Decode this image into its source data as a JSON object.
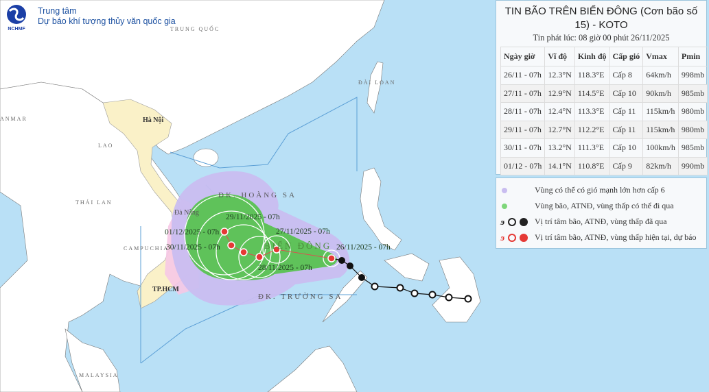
{
  "header": {
    "logo_text": "NCHMF",
    "org_line1": "Trung tâm",
    "org_line2": "Dự báo khí tượng thủy văn quốc gia"
  },
  "info": {
    "title": "TIN BÃO TRÊN BIỂN ĐÔNG (Cơn bão số 15) - KOTO",
    "issued": "Tin phát lúc: 08 giờ 00 phút 26/11/2025",
    "columns": [
      "Ngày giờ",
      "Vĩ độ",
      "Kinh độ",
      "Cấp gió",
      "Vmax",
      "Pmin"
    ],
    "rows": [
      [
        "26/11 - 07h",
        "12.3°N",
        "118.3°E",
        "Cấp 8",
        "64km/h",
        "998mb"
      ],
      [
        "27/11 - 07h",
        "12.9°N",
        "114.5°E",
        "Cấp 10",
        "90km/h",
        "985mb"
      ],
      [
        "28/11 - 07h",
        "12.4°N",
        "113.3°E",
        "Cấp 11",
        "115km/h",
        "980mb"
      ],
      [
        "29/11 - 07h",
        "12.7°N",
        "112.2°E",
        "Cấp 11",
        "115km/h",
        "980mb"
      ],
      [
        "30/11 - 07h",
        "13.2°N",
        "111.3°E",
        "Cấp 10",
        "100km/h",
        "985mb"
      ],
      [
        "01/12 - 07h",
        "14.1°N",
        "110.8°E",
        "Cấp 9",
        "82km/h",
        "990mb"
      ]
    ]
  },
  "legend": {
    "items": [
      {
        "label": "Vùng có thể có gió mạnh lớn hơn cấp 6",
        "color": "#c9bdf0"
      },
      {
        "label": "Vùng bão, ATNĐ, vùng thấp có thể đi qua",
        "color": "#7ed67a"
      },
      {
        "label": "Vị trí tâm bão, ATNĐ, vùng thấp đã qua",
        "color": "#222222"
      },
      {
        "label": "Vị trí tâm bão, ATNĐ, vùng thấp hiện tại, dự báo",
        "color": "#e53935"
      }
    ]
  },
  "map": {
    "labels": {
      "china": "TRUNG QUỐC",
      "myanmar": "ANMAR",
      "laos": "LAO",
      "thailand": "THÁI LAN",
      "cambodia": "CAMPUCHIA",
      "taiwan": "ĐÀI LOAN",
      "malaysia": "MALAYSIA",
      "hanoi": "Hà Nội",
      "danang": "Đà Nẵng",
      "hcm": "TP.HCM",
      "hoangsa": "ĐK. HOÀNG SA",
      "truongsa": "ĐK. TRƯỜNG SA",
      "biendong": "BIỂN ĐÔNG"
    },
    "forecast_labels": [
      "26/11/2025 - 07h",
      "27/11/2025 - 07h",
      "28/11/2025 - 07h",
      "29/11/2025 - 07h",
      "30/11/2025 - 07h",
      "01/12/2025 - 07h"
    ],
    "colors": {
      "ocean": "#b9e0f6",
      "land": "#ffffff",
      "vietnam": "#faf1c8",
      "wind_zone": "#c9bdf0",
      "storm_zone": "#5fc25a",
      "warning_zone": "#f6c8e6",
      "track_current": "#e53935",
      "track_past": "#111111"
    }
  }
}
